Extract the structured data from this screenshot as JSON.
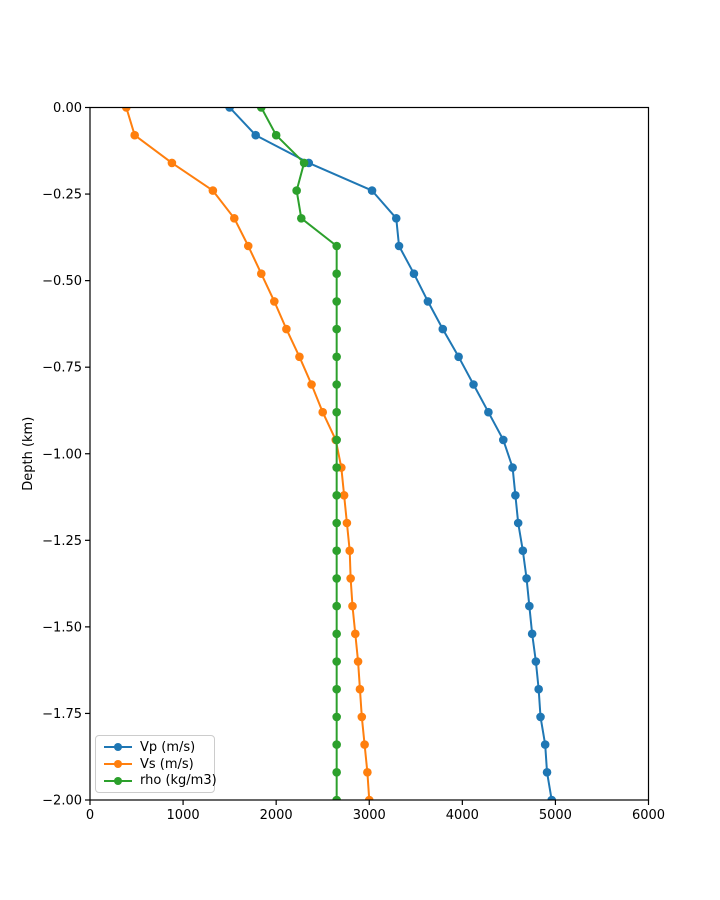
{
  "figure": {
    "background": "#ffffff",
    "axis_color": "#000000",
    "title": ""
  },
  "chart_data": {
    "type": "line",
    "title": "",
    "xlabel": "",
    "ylabel": "Depth (km)",
    "xlim": [
      0,
      6000
    ],
    "ylim": [
      -2.0,
      0.0
    ],
    "grid": false,
    "legend_position": "lower left",
    "x_ticks": [
      {
        "v": 0,
        "label": "0"
      },
      {
        "v": 1000,
        "label": "1000"
      },
      {
        "v": 2000,
        "label": "2000"
      },
      {
        "v": 3000,
        "label": "3000"
      },
      {
        "v": 4000,
        "label": "4000"
      },
      {
        "v": 5000,
        "label": "5000"
      },
      {
        "v": 6000,
        "label": "6000"
      }
    ],
    "y_ticks": [
      {
        "v": 0,
        "label": "0.00"
      },
      {
        "v": -0.25,
        "label": "−0.25"
      },
      {
        "v": -0.5,
        "label": "−0.50"
      },
      {
        "v": -0.75,
        "label": "−0.75"
      },
      {
        "v": -1,
        "label": "−1.00"
      },
      {
        "v": -1.25,
        "label": "−1.25"
      },
      {
        "v": -1.5,
        "label": "−1.50"
      },
      {
        "v": -1.75,
        "label": "−1.75"
      },
      {
        "v": -2,
        "label": "−2.00"
      }
    ],
    "depth_km": [
      0,
      -0.08,
      -0.16,
      -0.24,
      -0.32,
      -0.4,
      -0.48,
      -0.56,
      -0.64,
      -0.72,
      -0.8,
      -0.88,
      -0.96,
      -1.04,
      -1.12,
      -1.2,
      -1.28,
      -1.36,
      -1.44,
      -1.52,
      -1.6,
      -1.68,
      -1.76,
      -1.84,
      -1.92,
      -2
    ],
    "series": [
      {
        "name": "Vp (m/s)",
        "color": "#1f77b4",
        "marker": "circle",
        "values": [
          1500,
          1780,
          2350,
          3030,
          3290,
          3320,
          3480,
          3630,
          3790,
          3960,
          4120,
          4280,
          4440,
          4540,
          4570,
          4600,
          4650,
          4690,
          4720,
          4750,
          4790,
          4820,
          4840,
          4890,
          4910,
          4960
        ]
      },
      {
        "name": "Vs (m/s)",
        "color": "#ff7f0e",
        "marker": "circle",
        "values": [
          390,
          480,
          880,
          1320,
          1550,
          1700,
          1840,
          1980,
          2110,
          2250,
          2380,
          2500,
          2640,
          2700,
          2730,
          2760,
          2790,
          2800,
          2820,
          2850,
          2880,
          2900,
          2920,
          2950,
          2980,
          3000
        ]
      },
      {
        "name": "rho (kg/m3)",
        "color": "#2ca02c",
        "marker": "circle",
        "values": [
          1840,
          2000,
          2300,
          2220,
          2270,
          2650,
          2650,
          2650,
          2650,
          2650,
          2650,
          2650,
          2650,
          2650,
          2650,
          2650,
          2650,
          2650,
          2650,
          2650,
          2650,
          2650,
          2650,
          2650,
          2650,
          2650
        ]
      }
    ]
  }
}
